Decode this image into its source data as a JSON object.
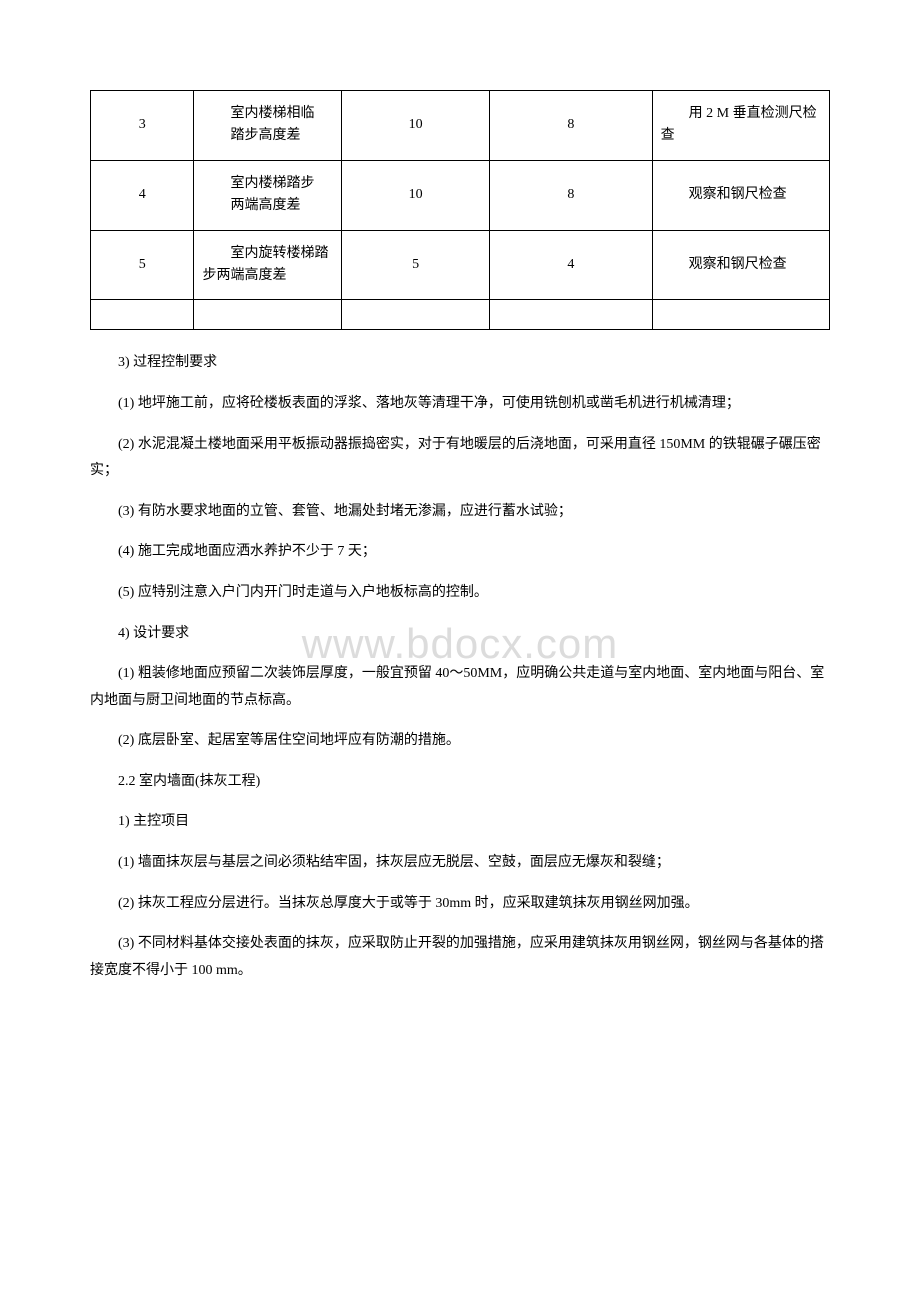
{
  "watermark": "www.bdocx.com",
  "table": {
    "columns": {
      "col1_width": "14%",
      "col2_width": "20%",
      "col3_width": "20%",
      "col4_width": "22%",
      "col5_width": "24%"
    },
    "border_color": "#000000",
    "rows": [
      {
        "num": "3",
        "desc_line1": "室内楼梯相临",
        "desc_line2": "踏步高度差",
        "val1": "10",
        "val2": "8",
        "method": "用 2 M 垂直检测尺检查"
      },
      {
        "num": "4",
        "desc_line1": "室内楼梯踏步",
        "desc_line2": "两端高度差",
        "val1": "10",
        "val2": "8",
        "method": "观察和钢尺检查"
      },
      {
        "num": "5",
        "desc_line1": "室内旋转楼梯踏步两端高度差",
        "desc_line2": "",
        "val1": "5",
        "val2": "4",
        "method": "观察和钢尺检查"
      }
    ]
  },
  "paragraphs": [
    "3) 过程控制要求",
    "(1) 地坪施工前，应将砼楼板表面的浮浆、落地灰等清理干净，可使用铣刨机或凿毛机进行机械清理；",
    "(2) 水泥混凝土楼地面采用平板振动器振捣密实，对于有地暖层的后浇地面，可采用直径 150MM 的铁辊碾子碾压密实；",
    "(3) 有防水要求地面的立管、套管、地漏处封堵无渗漏，应进行蓄水试验；",
    "(4) 施工完成地面应洒水养护不少于 7 天；",
    "(5) 应特别注意入户门内开门时走道与入户地板标高的控制。",
    "4) 设计要求",
    "(1) 粗装修地面应预留二次装饰层厚度，一般宜预留 40～50MM，应明确公共走道与室内地面、室内地面与阳台、室内地面与厨卫间地面的节点标高。",
    "(2) 底层卧室、起居室等居住空间地坪应有防潮的措施。",
    "2.2 室内墙面(抹灰工程)",
    "1) 主控项目",
    "(1) 墙面抹灰层与基层之间必须粘结牢固，抹灰层应无脱层、空鼓，面层应无爆灰和裂缝；",
    "(2) 抹灰工程应分层进行。当抹灰总厚度大于或等于 30mm 时，应采取建筑抹灰用钢丝网加强。",
    "(3) 不同材料基体交接处表面的抹灰，应采取防止开裂的加强措施，应采用建筑抹灰用钢丝网，钢丝网与各基体的搭接宽度不得小于 100 mm。"
  ],
  "colors": {
    "background": "#ffffff",
    "text": "#000000",
    "watermark": "#dcdcdc",
    "border": "#000000"
  },
  "typography": {
    "body_font": "SimSun",
    "body_size_pt": 14,
    "watermark_font": "Arial",
    "watermark_size_pt": 42
  }
}
